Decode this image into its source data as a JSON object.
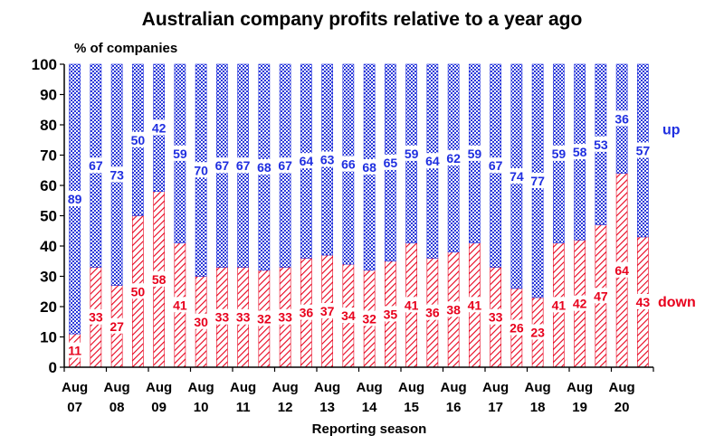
{
  "chart_data": {
    "type": "bar",
    "stacked": true,
    "title": "Australian company profits relative to a year ago",
    "ylabel": "% of companies",
    "xlabel": "Reporting season",
    "ylim": [
      0,
      100
    ],
    "yticks": [
      0,
      10,
      20,
      30,
      40,
      50,
      60,
      70,
      80,
      90,
      100
    ],
    "xtick_labels": [
      {
        "month": "Aug",
        "year": "07"
      },
      {
        "month": "Aug",
        "year": "08"
      },
      {
        "month": "Aug",
        "year": "09"
      },
      {
        "month": "Aug",
        "year": "10"
      },
      {
        "month": "Aug",
        "year": "11"
      },
      {
        "month": "Aug",
        "year": "12"
      },
      {
        "month": "Aug",
        "year": "13"
      },
      {
        "month": "Aug",
        "year": "14"
      },
      {
        "month": "Aug",
        "year": "15"
      },
      {
        "month": "Aug",
        "year": "16"
      },
      {
        "month": "Aug",
        "year": "17"
      },
      {
        "month": "Aug",
        "year": "18"
      },
      {
        "month": "Aug",
        "year": "19"
      },
      {
        "month": "Aug",
        "year": "20"
      }
    ],
    "series": [
      {
        "name": "down",
        "color": "#e8001c",
        "values": [
          11,
          33,
          27,
          50,
          58,
          41,
          30,
          33,
          33,
          32,
          33,
          36,
          37,
          34,
          32,
          35,
          41,
          36,
          38,
          41,
          33,
          26,
          23,
          41,
          42,
          47,
          64,
          43
        ]
      },
      {
        "name": "up",
        "color": "#1f2fe0",
        "values": [
          89,
          67,
          73,
          50,
          42,
          59,
          70,
          67,
          67,
          68,
          67,
          64,
          63,
          66,
          68,
          65,
          59,
          64,
          62,
          59,
          67,
          74,
          77,
          59,
          58,
          53,
          36,
          57
        ]
      }
    ]
  }
}
